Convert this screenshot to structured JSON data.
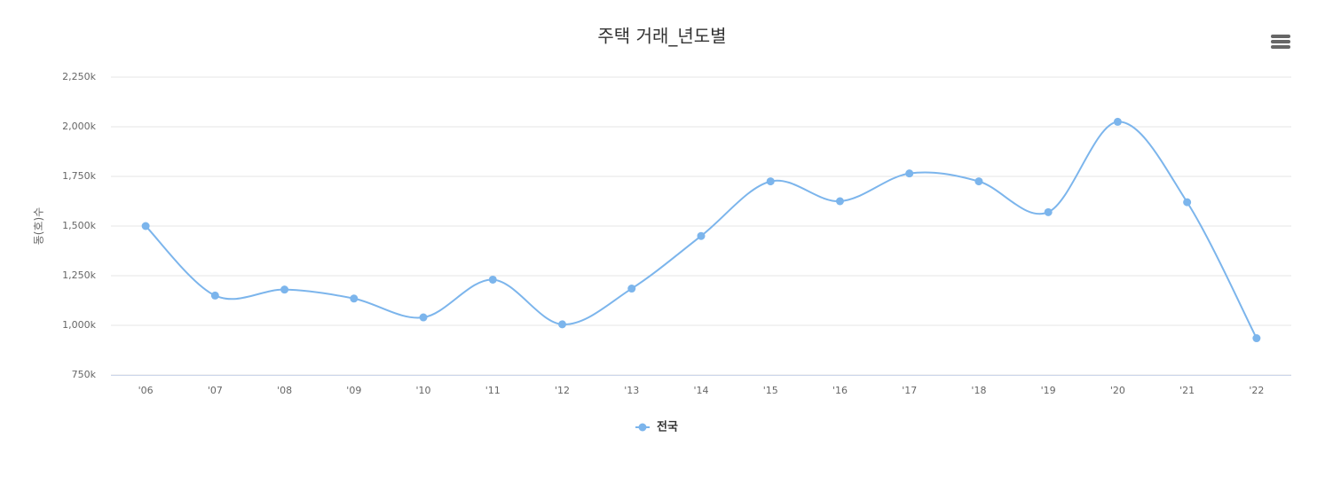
{
  "chart_data": {
    "type": "line",
    "title": "주택 거래_년도별",
    "y_label": "동(호)수",
    "categories": [
      "'06",
      "'07",
      "'08",
      "'09",
      "'10",
      "'11",
      "'12",
      "'13",
      "'14",
      "'15",
      "'16",
      "'17",
      "'18",
      "'19",
      "'20",
      "'21",
      "'22"
    ],
    "series": [
      {
        "name": "전국",
        "color": "#7cb5ec",
        "values": [
          1500,
          1150,
          1180,
          1135,
          1040,
          1230,
          1005,
          1185,
          1450,
          1725,
          1625,
          1765,
          1725,
          1570,
          2025,
          1620,
          935
        ]
      }
    ],
    "ylim": [
      750,
      2250
    ],
    "yticks": [
      {
        "value": 750,
        "label": "750k"
      },
      {
        "value": 1000,
        "label": "1,000k"
      },
      {
        "value": 1250,
        "label": "1,250k"
      },
      {
        "value": 1500,
        "label": "1,500k"
      },
      {
        "value": 1750,
        "label": "1,750k"
      },
      {
        "value": 2000,
        "label": "2,000k"
      },
      {
        "value": 2250,
        "label": "2,250k"
      }
    ],
    "grid": true,
    "legend": "bottom"
  }
}
